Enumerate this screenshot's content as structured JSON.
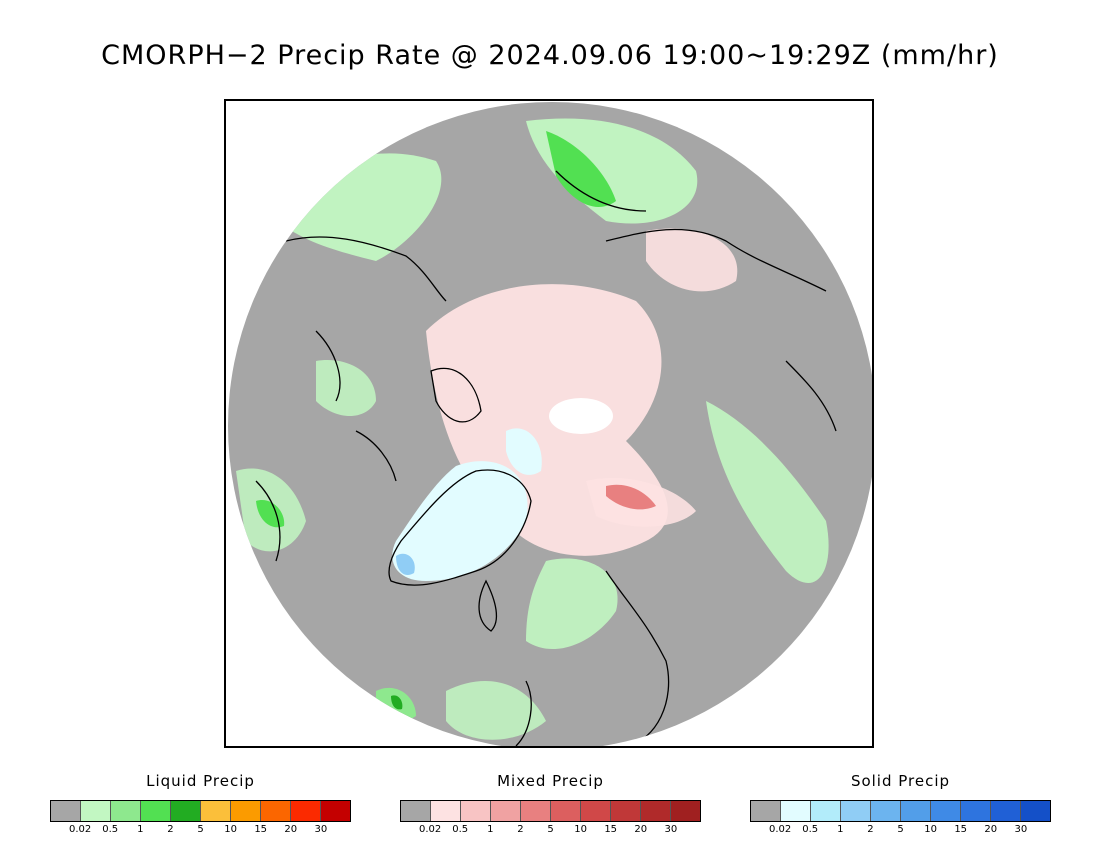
{
  "title": "CMORPH−2 Precip Rate @ 2024.09.06 19:00~19:29Z (mm/hr)",
  "legends": [
    {
      "title": "Liquid Precip",
      "colors": [
        "#a6a6a6",
        "#c2f7c2",
        "#8ee88e",
        "#52e052",
        "#22ac22",
        "#fbbf3a",
        "#fb9b00",
        "#fb6600",
        "#fb2a00",
        "#c40000"
      ],
      "ticks": [
        "0.02",
        "0.5",
        "1",
        "2",
        "5",
        "10",
        "15",
        "20",
        "30"
      ]
    },
    {
      "title": "Mixed Precip",
      "colors": [
        "#a6a6a6",
        "#fde2e2",
        "#f8c4c4",
        "#f0a2a2",
        "#e88080",
        "#dc5f5f",
        "#d04848",
        "#c03838",
        "#b02a2a",
        "#a02020"
      ],
      "ticks": [
        "0.02",
        "0.5",
        "1",
        "2",
        "5",
        "10",
        "15",
        "20",
        "30"
      ]
    },
    {
      "title": "Solid Precip",
      "colors": [
        "#a6a6a6",
        "#e2fcff",
        "#b2ecfa",
        "#90cdf5",
        "#6cb4ef",
        "#529ee9",
        "#3f8ae6",
        "#2e74df",
        "#2060d6",
        "#1450c8"
      ],
      "ticks": [
        "0.02",
        "0.5",
        "1",
        "2",
        "5",
        "10",
        "15",
        "20",
        "30"
      ]
    }
  ]
}
